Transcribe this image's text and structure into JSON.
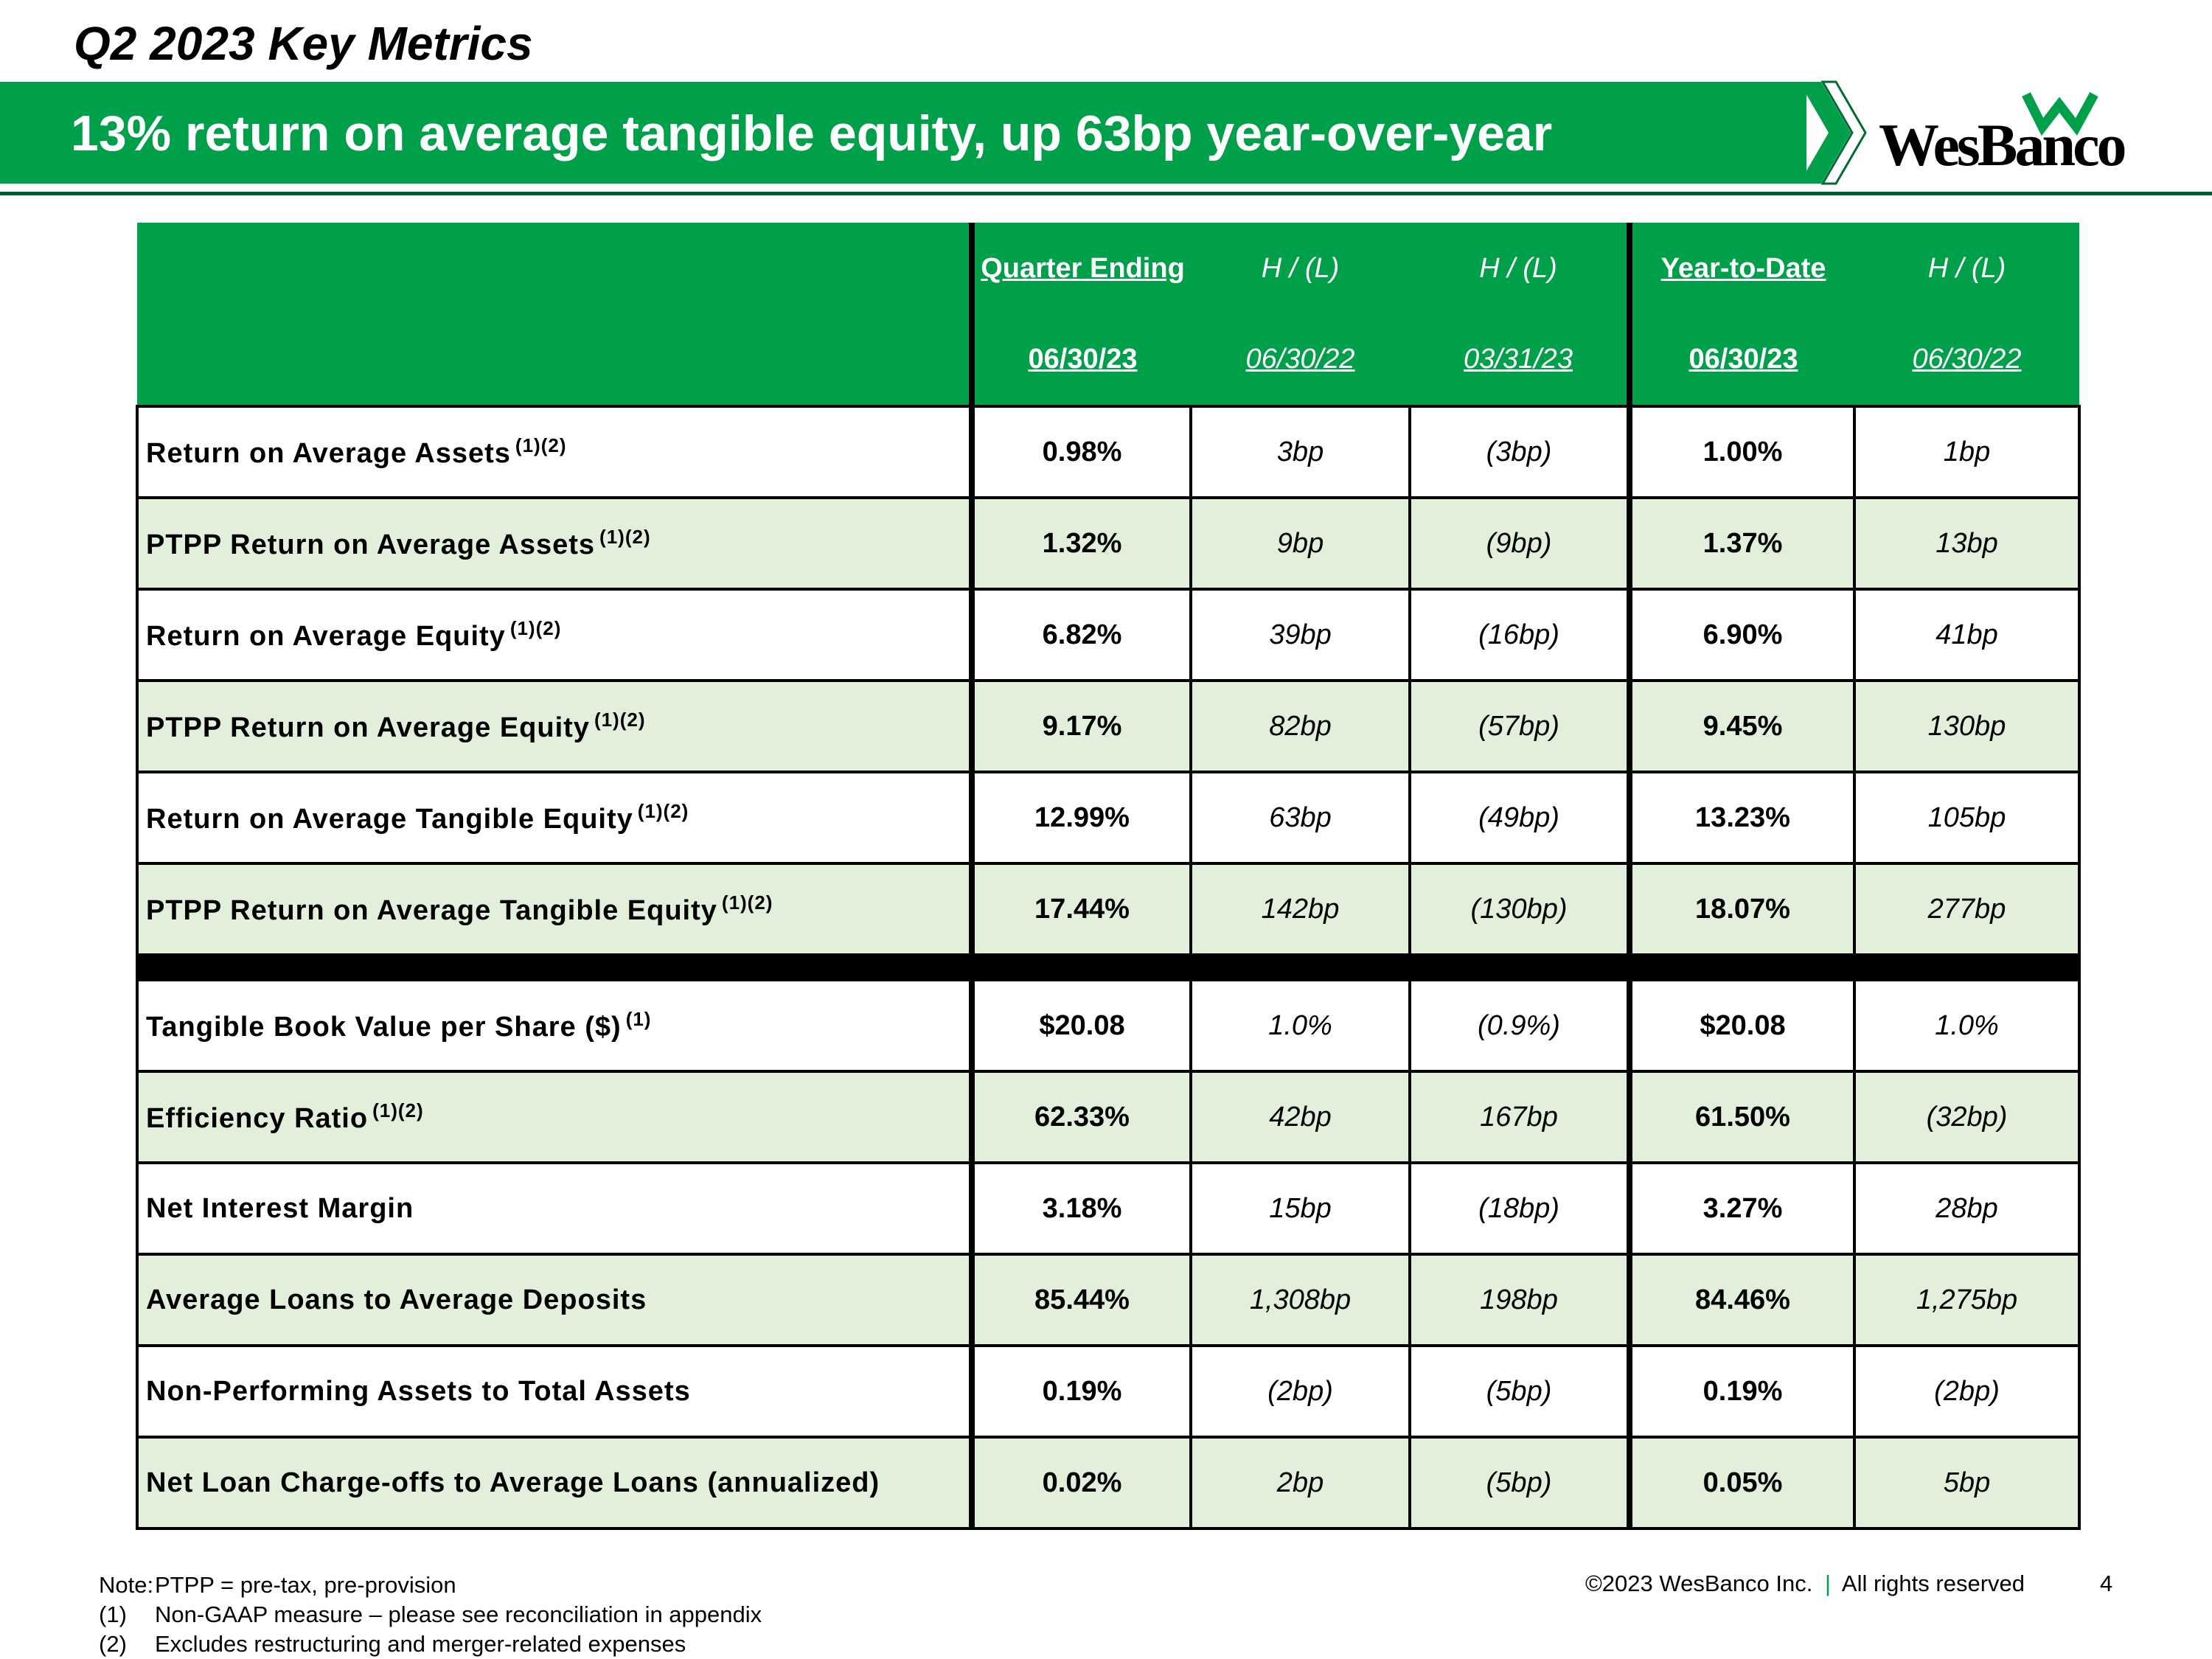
{
  "header": {
    "title": "Q2 2023 Key Metrics",
    "subtitle": "13% return on average tangible equity, up 63bp year-over-year",
    "logo": "WesBanco"
  },
  "table": {
    "header_top": [
      "Quarter Ending",
      "H / (L)",
      "H / (L)",
      "Year-to-Date",
      "H / (L)"
    ],
    "header_dates": [
      "06/30/23",
      "06/30/22",
      "03/31/23",
      "06/30/23",
      "06/30/22"
    ],
    "sections": [
      [
        {
          "label": "Return on Average Assets",
          "note": "(1)(2)",
          "cells": [
            "0.98%",
            "3bp",
            "(3bp)",
            "1.00%",
            "1bp"
          ]
        },
        {
          "label": "PTPP Return on Average Assets",
          "note": "(1)(2)",
          "cells": [
            "1.32%",
            "9bp",
            "(9bp)",
            "1.37%",
            "13bp"
          ]
        },
        {
          "label": "Return on Average Equity",
          "note": "(1)(2)",
          "cells": [
            "6.82%",
            "39bp",
            "(16bp)",
            "6.90%",
            "41bp"
          ]
        },
        {
          "label": "PTPP Return on Average Equity",
          "note": "(1)(2)",
          "cells": [
            "9.17%",
            "82bp",
            "(57bp)",
            "9.45%",
            "130bp"
          ]
        },
        {
          "label": "Return on Average Tangible Equity",
          "note": "(1)(2)",
          "cells": [
            "12.99%",
            "63bp",
            "(49bp)",
            "13.23%",
            "105bp"
          ]
        },
        {
          "label": "PTPP Return on Average Tangible Equity",
          "note": "(1)(2)",
          "cells": [
            "17.44%",
            "142bp",
            "(130bp)",
            "18.07%",
            "277bp"
          ]
        }
      ],
      [
        {
          "label": "Tangible Book Value per Share ($)",
          "note": "(1)",
          "cells": [
            "$20.08",
            "1.0%",
            "(0.9%)",
            "$20.08",
            "1.0%"
          ]
        },
        {
          "label": "Efficiency Ratio",
          "note": "(1)(2)",
          "cells": [
            "62.33%",
            "42bp",
            "167bp",
            "61.50%",
            "(32bp)"
          ]
        },
        {
          "label": "Net Interest Margin",
          "cells": [
            "3.18%",
            "15bp",
            "(18bp)",
            "3.27%",
            "28bp"
          ]
        },
        {
          "label": "Average Loans to Average Deposits",
          "cells": [
            "85.44%",
            "1,308bp",
            "198bp",
            "84.46%",
            "1,275bp"
          ]
        },
        {
          "label": "Non-Performing Assets to Total Assets",
          "cells": [
            "0.19%",
            "(2bp)",
            "(5bp)",
            "0.19%",
            "(2bp)"
          ]
        },
        {
          "label": "Net Loan Charge-offs to Average Loans (annualized)",
          "cells": [
            "0.02%",
            "2bp",
            "(5bp)",
            "0.05%",
            "5bp"
          ]
        }
      ]
    ]
  },
  "footer": {
    "notes": [
      {
        "marker": "Note:",
        "text": "PTPP = pre-tax, pre-provision"
      },
      {
        "marker": "(1)",
        "text": "Non-GAAP measure – please see reconciliation in appendix"
      },
      {
        "marker": "(2)",
        "text": "Excludes restructuring and merger-related expenses"
      }
    ],
    "copyright": "©2023 WesBanco Inc.",
    "separator": "|",
    "rights": "All rights reserved",
    "page": "4"
  }
}
